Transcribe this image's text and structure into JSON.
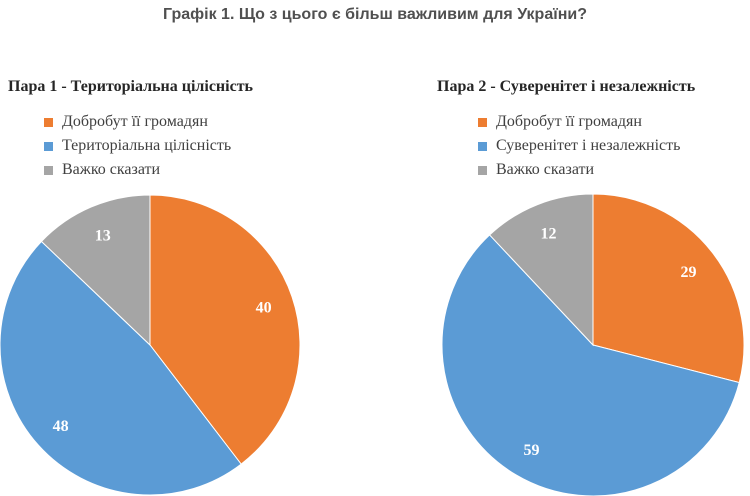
{
  "title": "Графік 1. Що з цього є більш важливим для України?",
  "chart_data": [
    {
      "type": "pie",
      "title": "Пара 1 - Територіальна цілісність",
      "categories": [
        "Добробут її громадян",
        "Територіальна цілісність",
        "Важко сказати"
      ],
      "values": [
        40,
        48,
        13
      ],
      "colors": [
        "#ED7D31",
        "#5B9BD5",
        "#A5A5A5"
      ],
      "legend_position": "top"
    },
    {
      "type": "pie",
      "title": "Пара 2 - Суверенітет і незалежність",
      "categories": [
        "Добробут її громадян",
        "Суверенітет і незалежність",
        "Важко сказати"
      ],
      "values": [
        29,
        59,
        12
      ],
      "colors": [
        "#ED7D31",
        "#5B9BD5",
        "#A5A5A5"
      ],
      "legend_position": "top"
    }
  ]
}
